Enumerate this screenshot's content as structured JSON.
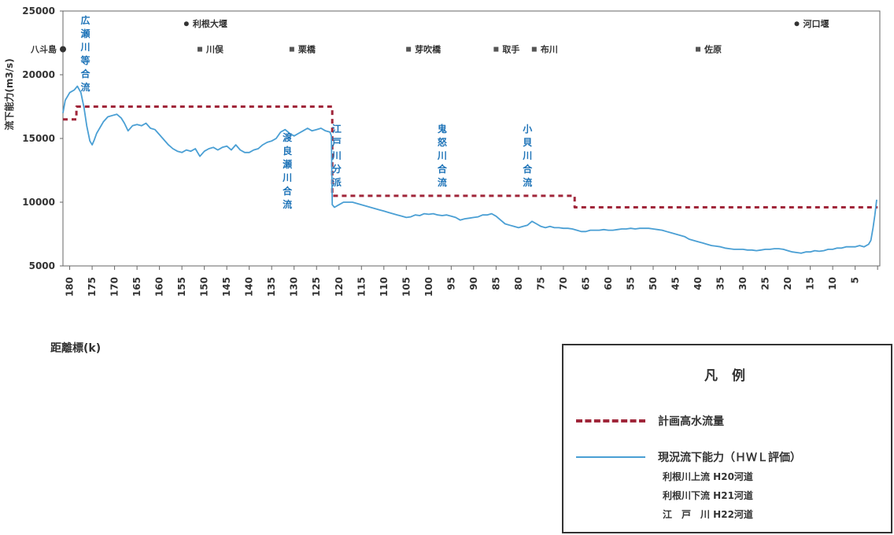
{
  "chart_data": {
    "type": "line",
    "ylabel": "流下能力(m3/s)",
    "xlabel": "距離標(k)",
    "ylim": [
      5000,
      25000
    ],
    "yticks": [
      5000,
      10000,
      15000,
      20000,
      25000
    ],
    "xlim": [
      181.5,
      -0.5
    ],
    "xticks": [
      180,
      175,
      170,
      165,
      160,
      155,
      150,
      145,
      140,
      135,
      130,
      125,
      120,
      115,
      110,
      105,
      100,
      95,
      90,
      85,
      80,
      75,
      70,
      65,
      60,
      55,
      50,
      45,
      40,
      35,
      30,
      25,
      20,
      15,
      10,
      5,
      0
    ],
    "xtick_labels": [
      "180",
      "175",
      "170",
      "165",
      "160",
      "155",
      "150",
      "145",
      "140",
      "135",
      "130",
      "125",
      "120",
      "115",
      "110",
      "105",
      "100",
      "95",
      "90",
      "85",
      "80",
      "75",
      "70",
      "65",
      "60",
      "55",
      "50",
      "45",
      "40",
      "35",
      "30",
      "25",
      "20",
      "15",
      "10",
      "5",
      ""
    ],
    "series": [
      {
        "name": "計画高水流量",
        "style": "dashed",
        "color": "#a0263a",
        "points": [
          [
            181.5,
            16500
          ],
          [
            178.5,
            16500
          ],
          [
            178.5,
            17500
          ],
          [
            121.5,
            17500
          ],
          [
            121.5,
            10500
          ],
          [
            67.5,
            10500
          ],
          [
            67.5,
            9600
          ],
          [
            0,
            9600
          ]
        ]
      },
      {
        "name": "現況流下能力(HWL評価)",
        "style": "solid",
        "color": "#4a9fd4",
        "points": [
          [
            181.5,
            17000
          ],
          [
            181,
            18000
          ],
          [
            180,
            18600
          ],
          [
            179,
            18800
          ],
          [
            178.3,
            19100
          ],
          [
            177.5,
            18600
          ],
          [
            176.8,
            17400
          ],
          [
            176.2,
            16000
          ],
          [
            175.5,
            14800
          ],
          [
            175,
            14500
          ],
          [
            174.5,
            14900
          ],
          [
            174,
            15400
          ],
          [
            173.5,
            15700
          ],
          [
            172.5,
            16300
          ],
          [
            171.5,
            16700
          ],
          [
            170.5,
            16800
          ],
          [
            169.5,
            16900
          ],
          [
            168.5,
            16600
          ],
          [
            167.8,
            16200
          ],
          [
            167,
            15600
          ],
          [
            166,
            16000
          ],
          [
            165,
            16100
          ],
          [
            164,
            16000
          ],
          [
            163,
            16200
          ],
          [
            162,
            15800
          ],
          [
            161,
            15700
          ],
          [
            160,
            15300
          ],
          [
            159,
            14900
          ],
          [
            158,
            14500
          ],
          [
            157,
            14200
          ],
          [
            156,
            14000
          ],
          [
            155,
            13900
          ],
          [
            154,
            14100
          ],
          [
            153,
            14000
          ],
          [
            152,
            14200
          ],
          [
            151,
            13600
          ],
          [
            150,
            14000
          ],
          [
            149,
            14200
          ],
          [
            148,
            14300
          ],
          [
            147,
            14100
          ],
          [
            146,
            14300
          ],
          [
            145,
            14400
          ],
          [
            144,
            14100
          ],
          [
            143,
            14500
          ],
          [
            142,
            14100
          ],
          [
            141,
            13900
          ],
          [
            140,
            13900
          ],
          [
            139,
            14100
          ],
          [
            138,
            14200
          ],
          [
            137,
            14500
          ],
          [
            136,
            14700
          ],
          [
            135,
            14800
          ],
          [
            134,
            15000
          ],
          [
            133,
            15500
          ],
          [
            132,
            15700
          ],
          [
            131,
            15400
          ],
          [
            130,
            15200
          ],
          [
            129,
            15400
          ],
          [
            128,
            15600
          ],
          [
            127,
            15800
          ],
          [
            126,
            15600
          ],
          [
            125,
            15700
          ],
          [
            124,
            15800
          ],
          [
            123,
            15600
          ],
          [
            122,
            15500
          ],
          [
            121.7,
            15200
          ],
          [
            121.5,
            9800
          ],
          [
            121,
            9600
          ],
          [
            120,
            9800
          ],
          [
            119,
            10000
          ],
          [
            118,
            10000
          ],
          [
            117,
            10000
          ],
          [
            116,
            9900
          ],
          [
            115,
            9800
          ],
          [
            114,
            9700
          ],
          [
            113,
            9600
          ],
          [
            112,
            9500
          ],
          [
            111,
            9400
          ],
          [
            110,
            9300
          ],
          [
            109,
            9200
          ],
          [
            108,
            9100
          ],
          [
            107,
            9000
          ],
          [
            106,
            8900
          ],
          [
            105,
            8800
          ],
          [
            104,
            8850
          ],
          [
            103,
            9000
          ],
          [
            102,
            8950
          ],
          [
            101,
            9100
          ],
          [
            100,
            9050
          ],
          [
            99,
            9100
          ],
          [
            98,
            9000
          ],
          [
            97,
            8950
          ],
          [
            96,
            9000
          ],
          [
            95,
            8900
          ],
          [
            94,
            8800
          ],
          [
            93,
            8600
          ],
          [
            92,
            8700
          ],
          [
            91,
            8750
          ],
          [
            90,
            8800
          ],
          [
            89,
            8850
          ],
          [
            88,
            9000
          ],
          [
            87,
            9000
          ],
          [
            86,
            9100
          ],
          [
            85,
            8900
          ],
          [
            84,
            8600
          ],
          [
            83,
            8300
          ],
          [
            82,
            8200
          ],
          [
            81,
            8100
          ],
          [
            80,
            8000
          ],
          [
            79,
            8100
          ],
          [
            78,
            8200
          ],
          [
            77,
            8500
          ],
          [
            76,
            8300
          ],
          [
            75,
            8100
          ],
          [
            74,
            8000
          ],
          [
            73,
            8100
          ],
          [
            72,
            8000
          ],
          [
            71,
            8000
          ],
          [
            70,
            7950
          ],
          [
            69,
            7950
          ],
          [
            68,
            7900
          ],
          [
            67,
            7800
          ],
          [
            66,
            7700
          ],
          [
            65,
            7700
          ],
          [
            64,
            7800
          ],
          [
            63,
            7800
          ],
          [
            62,
            7800
          ],
          [
            61,
            7850
          ],
          [
            60,
            7800
          ],
          [
            59,
            7800
          ],
          [
            58,
            7850
          ],
          [
            57,
            7900
          ],
          [
            56,
            7900
          ],
          [
            55,
            7950
          ],
          [
            54,
            7900
          ],
          [
            53,
            7950
          ],
          [
            52,
            7950
          ],
          [
            51,
            7950
          ],
          [
            50,
            7900
          ],
          [
            49,
            7850
          ],
          [
            48,
            7800
          ],
          [
            47,
            7700
          ],
          [
            46,
            7600
          ],
          [
            45,
            7500
          ],
          [
            44,
            7400
          ],
          [
            43,
            7300
          ],
          [
            42,
            7100
          ],
          [
            41,
            7000
          ],
          [
            40,
            6900
          ],
          [
            39,
            6800
          ],
          [
            38,
            6700
          ],
          [
            37,
            6600
          ],
          [
            36,
            6550
          ],
          [
            35,
            6500
          ],
          [
            34,
            6400
          ],
          [
            33,
            6350
          ],
          [
            32,
            6300
          ],
          [
            31,
            6300
          ],
          [
            30,
            6300
          ],
          [
            29,
            6250
          ],
          [
            28,
            6250
          ],
          [
            27,
            6200
          ],
          [
            26,
            6250
          ],
          [
            25,
            6300
          ],
          [
            24,
            6300
          ],
          [
            23,
            6350
          ],
          [
            22,
            6350
          ],
          [
            21,
            6300
          ],
          [
            20,
            6200
          ],
          [
            19,
            6100
          ],
          [
            18,
            6050
          ],
          [
            17,
            6000
          ],
          [
            16,
            6100
          ],
          [
            15,
            6100
          ],
          [
            14,
            6200
          ],
          [
            13,
            6150
          ],
          [
            12,
            6200
          ],
          [
            11,
            6300
          ],
          [
            10,
            6300
          ],
          [
            9,
            6400
          ],
          [
            8,
            6400
          ],
          [
            7,
            6500
          ],
          [
            6,
            6500
          ],
          [
            5,
            6500
          ],
          [
            4,
            6600
          ],
          [
            3,
            6500
          ],
          [
            2,
            6700
          ],
          [
            1.5,
            7000
          ],
          [
            1,
            8000
          ],
          [
            0.6,
            9000
          ],
          [
            0.2,
            10200
          ]
        ]
      }
    ],
    "vertical_annotations": [
      {
        "label": "広瀬川等合流",
        "x": 176.5,
        "y": 24000
      },
      {
        "label": "江戸川分派",
        "x": 120.5,
        "y": 15500
      },
      {
        "label": "渡良瀬川合流",
        "x": 131.5,
        "y": 14800
      },
      {
        "label": "鬼怒川合流",
        "x": 97,
        "y": 15500
      },
      {
        "label": "小貝川合流",
        "x": 78,
        "y": 15500
      }
    ],
    "bridges": [
      {
        "label": "八斗島",
        "x": 181.5,
        "y": 22000,
        "marker": "circle"
      },
      {
        "label": "利根大堰",
        "x": 154,
        "y": 24000,
        "marker": "circle"
      },
      {
        "label": "河口堰",
        "x": 18,
        "y": 24000,
        "marker": "circle"
      },
      {
        "label": "川俣",
        "x": 151,
        "y": 22000,
        "marker": "square"
      },
      {
        "label": "栗橋",
        "x": 130.5,
        "y": 22000,
        "marker": "square"
      },
      {
        "label": "芽吹橋",
        "x": 104.5,
        "y": 22000,
        "marker": "square"
      },
      {
        "label": "取手",
        "x": 85,
        "y": 22000,
        "marker": "square"
      },
      {
        "label": "布川",
        "x": 76.5,
        "y": 22000,
        "marker": "square"
      },
      {
        "label": "佐原",
        "x": 40,
        "y": 22000,
        "marker": "square"
      }
    ]
  },
  "legend": {
    "title": "凡 例",
    "planned_label": "計画高水流量",
    "current_label": "現況流下能力（ＨＷＬ評価）",
    "sub1": "利根川上流 H20河道",
    "sub2": "利根川下流 H21河道",
    "sub3": "江　戸　川 H22河道"
  },
  "colors": {
    "planned": "#a0263a",
    "current": "#4a9fd4",
    "annotation": "#1f74b8"
  }
}
